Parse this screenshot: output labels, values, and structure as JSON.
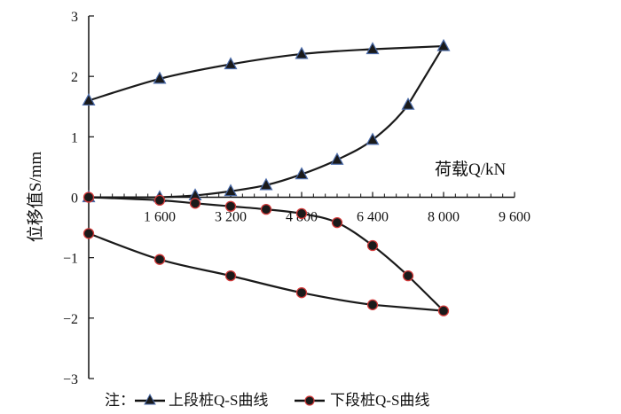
{
  "chart_data": {
    "type": "line",
    "title": "",
    "xlabel": "荷载Q/kN",
    "ylabel": "位移值S/mm",
    "xlim": [
      0,
      9600
    ],
    "ylim": [
      -3,
      3
    ],
    "x_ticks": [
      1600,
      3200,
      4800,
      6400,
      8000,
      9600
    ],
    "x_tick_labels": [
      "1 600",
      "3 200",
      "4 800",
      "6 400",
      "8 000",
      "9 600"
    ],
    "y_ticks": [
      3,
      2,
      1,
      0,
      -1,
      -2,
      -3
    ],
    "y_tick_labels": [
      "3",
      "2",
      "1",
      "0",
      "−1",
      "−2",
      "−3"
    ],
    "grid": false,
    "legend_prefix": "注：",
    "legend_placement": "bottom",
    "series": [
      {
        "name": "上段桩Q-S曲线",
        "marker": "triangle",
        "color": "#1a1a1a",
        "marker_edge": "#4a6aa8",
        "x": [
          0,
          1600,
          2400,
          3200,
          4000,
          4800,
          5600,
          6400,
          7200,
          8000,
          6400,
          4800,
          3200,
          1600,
          0
        ],
        "values": [
          0,
          0,
          0.03,
          0.1,
          0.2,
          0.38,
          0.62,
          0.95,
          1.53,
          2.5,
          2.45,
          2.37,
          2.2,
          1.96,
          1.6
        ]
      },
      {
        "name": "下段桩Q-S曲线",
        "marker": "circle",
        "color": "#1a1a1a",
        "marker_edge": "#d23a3a",
        "x": [
          0,
          1600,
          2400,
          3200,
          4000,
          4800,
          5600,
          6400,
          7200,
          8000,
          6400,
          4800,
          3200,
          1600,
          0
        ],
        "values": [
          0,
          -0.05,
          -0.1,
          -0.15,
          -0.2,
          -0.27,
          -0.42,
          -0.8,
          -1.3,
          -1.88,
          -1.78,
          -1.58,
          -1.3,
          -1.03,
          -0.6
        ]
      }
    ]
  }
}
